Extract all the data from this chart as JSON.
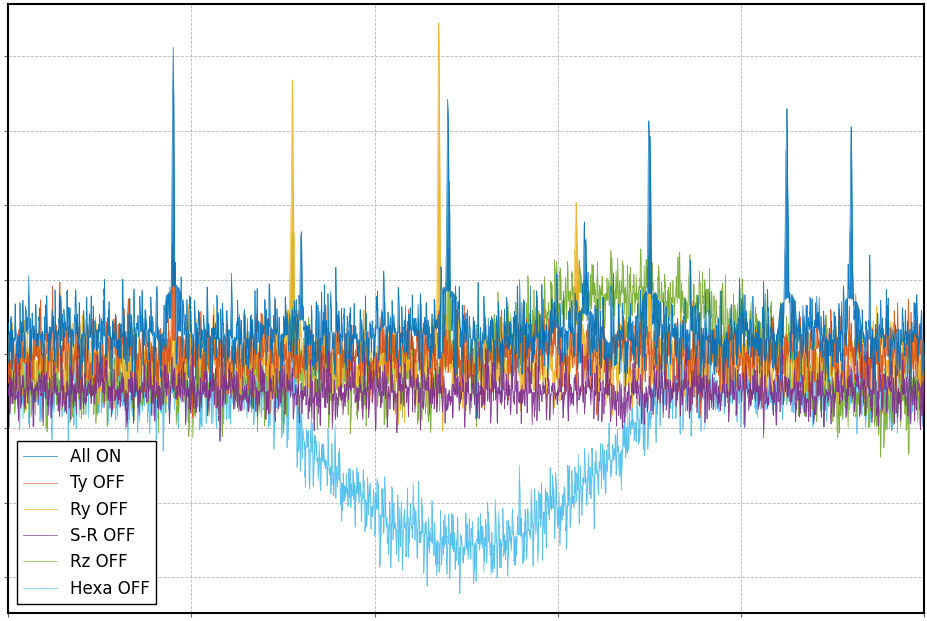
{
  "series": [
    {
      "label": "All ON",
      "color": "#0072BD",
      "zorder": 6,
      "lw": 1.0
    },
    {
      "label": "Ty OFF",
      "color": "#D95319",
      "zorder": 5,
      "lw": 1.0
    },
    {
      "label": "Ry OFF",
      "color": "#EDB120",
      "zorder": 4,
      "lw": 1.0
    },
    {
      "label": "S-R OFF",
      "color": "#7E2F8E",
      "zorder": 7,
      "lw": 1.0
    },
    {
      "label": "Rz OFF",
      "color": "#77AC30",
      "zorder": 3,
      "lw": 1.0
    },
    {
      "label": "Hexa OFF",
      "color": "#4DBEEE",
      "zorder": 2,
      "lw": 1.0
    }
  ],
  "n_points": 3000,
  "background_color": "#ffffff",
  "grid_color": "#b0b0b0",
  "fig_width": 9.28,
  "fig_height": 6.21,
  "dpi": 100,
  "legend_fontsize": 12,
  "spine_color": "#000000"
}
